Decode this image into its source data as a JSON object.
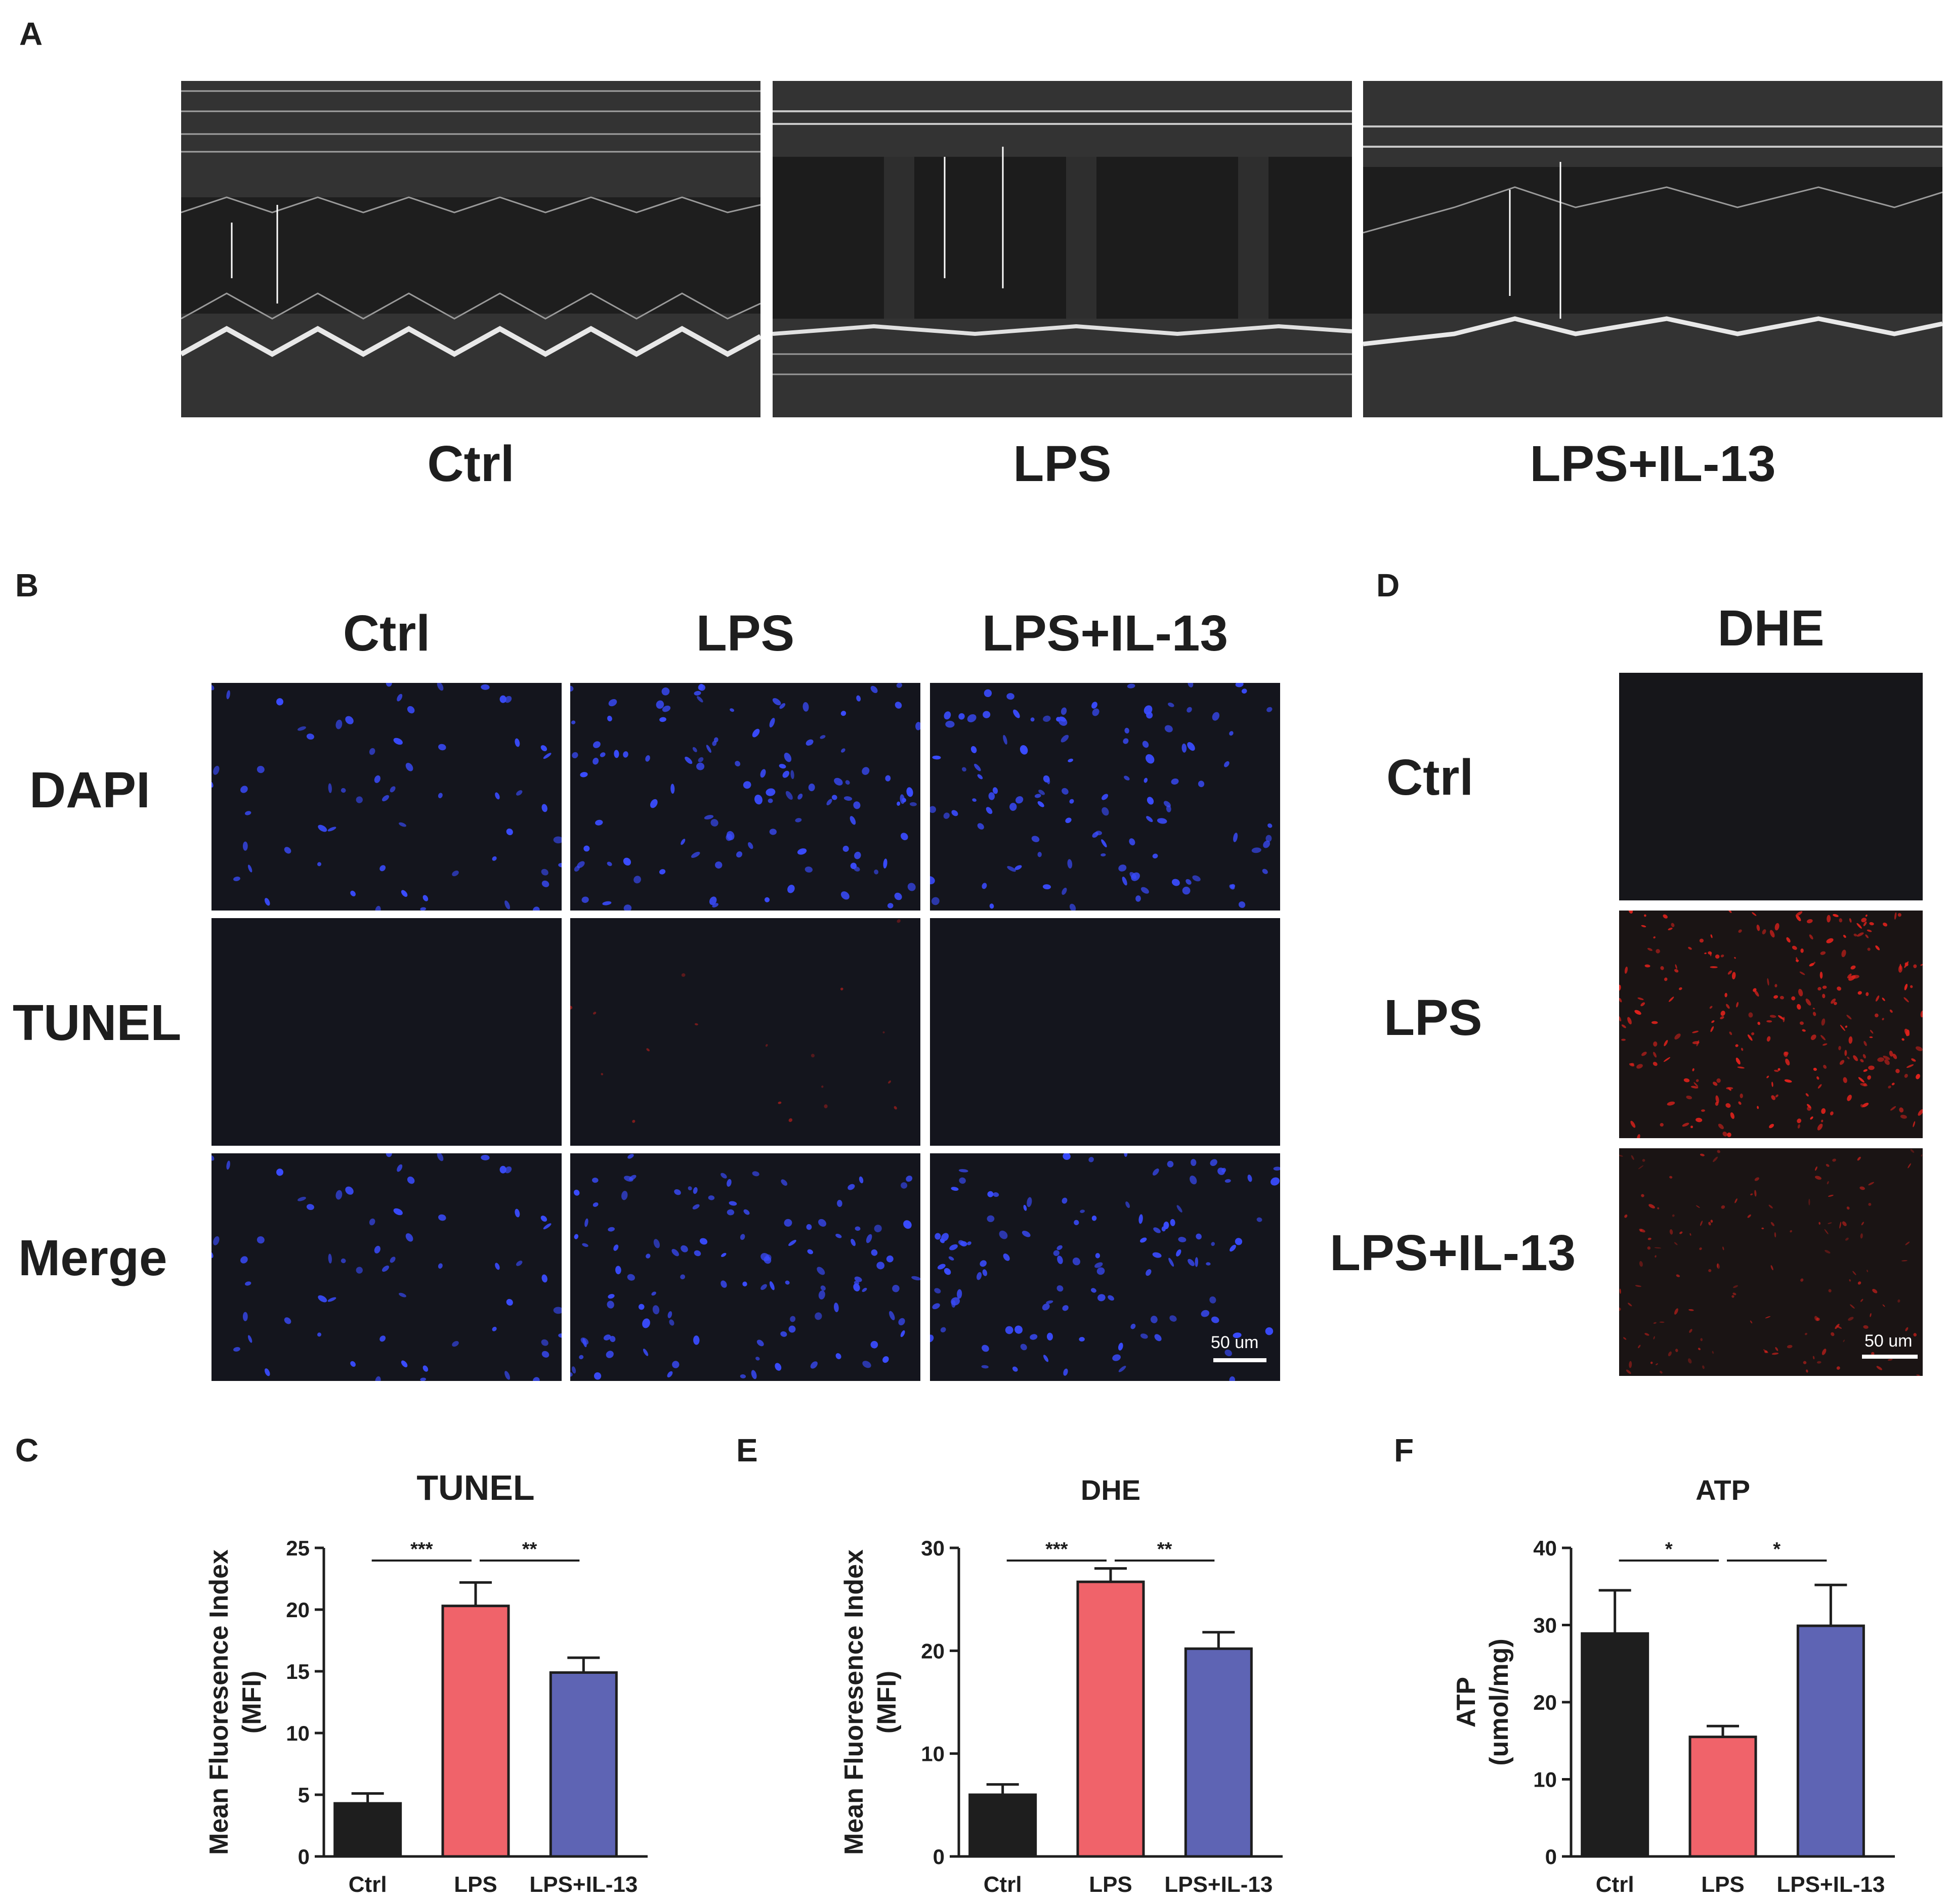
{
  "panels": {
    "A": {
      "letter": "A",
      "groups": [
        "Ctrl",
        "LPS",
        "LPS+IL-13"
      ]
    },
    "B": {
      "letter": "B",
      "columns": [
        "Ctrl",
        "LPS",
        "LPS+IL-13"
      ],
      "rows": [
        "DAPI",
        "TUNEL",
        "Merge"
      ],
      "scalebar": "50 um"
    },
    "D": {
      "letter": "D",
      "column": "DHE",
      "rows": [
        "Ctrl",
        "LPS",
        "LPS+IL-13"
      ],
      "scalebar": "50 um"
    },
    "C": {
      "letter": "C"
    },
    "E": {
      "letter": "E"
    },
    "F": {
      "letter": "F"
    }
  },
  "colors": {
    "ctrl": "#1e1e1e",
    "lps": "#f0636a",
    "lps_il13": "#5e64b4",
    "dapi": "#3a4cff",
    "tunel_dhe": "#e0221c"
  },
  "chart_data": [
    {
      "id": "C",
      "type": "bar",
      "title": "TUNEL",
      "ylabel": "Mean Fluoresence Index",
      "ylabel2": "(MFI)",
      "categories": [
        "Ctrl",
        "LPS",
        "LPS+IL-13"
      ],
      "values": [
        4.3,
        20.3,
        14.9
      ],
      "errors": [
        0.8,
        1.9,
        1.2
      ],
      "ylim": [
        0,
        25
      ],
      "yticks": [
        "0",
        "5",
        "10",
        "15",
        "20",
        "25"
      ],
      "significance": [
        {
          "from": 0,
          "to": 1,
          "label": "***"
        },
        {
          "from": 1,
          "to": 2,
          "label": "**"
        }
      ]
    },
    {
      "id": "E",
      "type": "bar",
      "title": "DHE",
      "ylabel": "Mean Fluoresence Index",
      "ylabel2": "(MFI)",
      "categories": [
        "Ctrl",
        "LPS",
        "LPS+IL-13"
      ],
      "values": [
        6.0,
        26.7,
        20.2
      ],
      "errors": [
        1.0,
        1.3,
        1.6
      ],
      "ylim": [
        0,
        30
      ],
      "yticks": [
        "0",
        "10",
        "20",
        "30"
      ],
      "significance": [
        {
          "from": 0,
          "to": 1,
          "label": "***"
        },
        {
          "from": 1,
          "to": 2,
          "label": "**"
        }
      ]
    },
    {
      "id": "F",
      "type": "bar",
      "title": "ATP",
      "ylabel": "ATP",
      "ylabel2": "(umol/mg)",
      "categories": [
        "Ctrl",
        "LPS",
        "LPS+IL-13"
      ],
      "values": [
        28.9,
        15.5,
        29.9
      ],
      "errors": [
        5.6,
        1.4,
        5.3
      ],
      "ylim": [
        0,
        40
      ],
      "yticks": [
        "0",
        "10",
        "20",
        "30",
        "40"
      ],
      "significance": [
        {
          "from": 0,
          "to": 1,
          "label": "*"
        },
        {
          "from": 1,
          "to": 2,
          "label": "*"
        }
      ]
    }
  ]
}
